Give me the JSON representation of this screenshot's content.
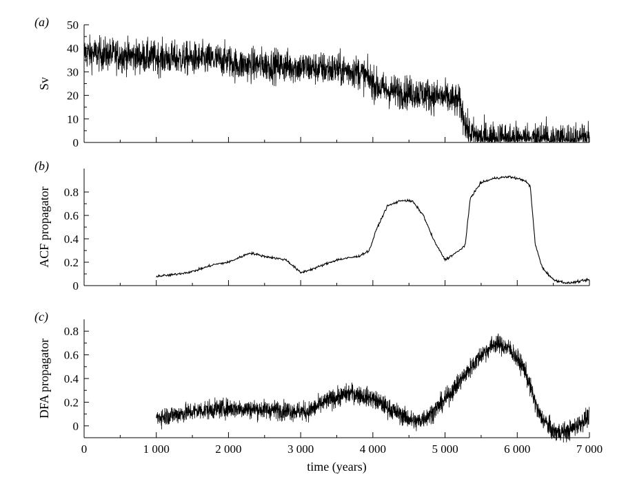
{
  "chart_data": [
    {
      "type": "line",
      "panel_label": "(a)",
      "ylabel": "Sv",
      "xlabel": "",
      "xlim": [
        0,
        7000
      ],
      "ylim": [
        0,
        50
      ],
      "yticks": [
        0,
        10,
        20,
        30,
        40,
        50
      ],
      "ytick_labels": [
        "0",
        "10",
        "20",
        "30",
        "40",
        "50"
      ],
      "series": [
        {
          "noise": 3.5,
          "x": [
            0,
            500,
            1000,
            1500,
            2000,
            2100,
            2500,
            3000,
            3500,
            3800,
            3950,
            4050,
            4200,
            4600,
            5000,
            5200,
            5270,
            5320,
            5500,
            6000,
            6500,
            7000
          ],
          "y": [
            38,
            37,
            36,
            35.5,
            35,
            33,
            33,
            32,
            31,
            30,
            27,
            24,
            22,
            21,
            19,
            17,
            10,
            4,
            2,
            1.5,
            1.5,
            1.5
          ]
        }
      ]
    },
    {
      "type": "line",
      "panel_label": "(b)",
      "ylabel": "ACF propagator",
      "xlabel": "",
      "xlim": [
        0,
        7000
      ],
      "ylim": [
        0,
        1
      ],
      "yticks": [
        0,
        0.2,
        0.4,
        0.6,
        0.8
      ],
      "ytick_labels": [
        "0",
        "0.2",
        "0.4",
        "0.6",
        "0.8"
      ],
      "series": [
        {
          "noise": 0.005,
          "x": [
            1000,
            1200,
            1500,
            1800,
            2000,
            2300,
            2500,
            2800,
            3000,
            3200,
            3500,
            3800,
            3950,
            4050,
            4200,
            4400,
            4550,
            4700,
            4850,
            5000,
            5100,
            5200,
            5280,
            5350,
            5500,
            5700,
            5900,
            6100,
            6180,
            6250,
            6350,
            6500,
            6700,
            7000
          ],
          "y": [
            0.08,
            0.09,
            0.12,
            0.18,
            0.2,
            0.28,
            0.25,
            0.22,
            0.11,
            0.15,
            0.22,
            0.25,
            0.3,
            0.48,
            0.68,
            0.73,
            0.72,
            0.6,
            0.38,
            0.22,
            0.26,
            0.3,
            0.35,
            0.75,
            0.88,
            0.92,
            0.93,
            0.9,
            0.85,
            0.35,
            0.15,
            0.05,
            0.02,
            0.05
          ]
        }
      ]
    },
    {
      "type": "line",
      "panel_label": "(c)",
      "ylabel": "DFA propagator",
      "xlabel": "time (years)",
      "xlim": [
        0,
        7000
      ],
      "ylim": [
        -0.1,
        0.9
      ],
      "yticks": [
        0,
        0.2,
        0.4,
        0.6,
        0.8
      ],
      "ytick_labels": [
        "0",
        "0.2",
        "0.4",
        "0.6",
        "0.8"
      ],
      "xticks": [
        0,
        1000,
        2000,
        3000,
        4000,
        5000,
        6000,
        7000
      ],
      "xtick_labels": [
        "0",
        "1 000",
        "2 000",
        "3 000",
        "4 000",
        "5 000",
        "6 000",
        "7 000"
      ],
      "series": [
        {
          "noise": 0.04,
          "x": [
            1000,
            1300,
            1600,
            2000,
            2400,
            2800,
            3100,
            3400,
            3700,
            4000,
            4300,
            4600,
            4800,
            5000,
            5300,
            5500,
            5700,
            5900,
            6100,
            6300,
            6500,
            6700,
            7000
          ],
          "y": [
            0.07,
            0.1,
            0.13,
            0.15,
            0.14,
            0.13,
            0.12,
            0.22,
            0.28,
            0.23,
            0.12,
            0.03,
            0.1,
            0.22,
            0.45,
            0.6,
            0.7,
            0.65,
            0.48,
            0.1,
            -0.05,
            -0.05,
            0.08
          ]
        }
      ]
    }
  ]
}
